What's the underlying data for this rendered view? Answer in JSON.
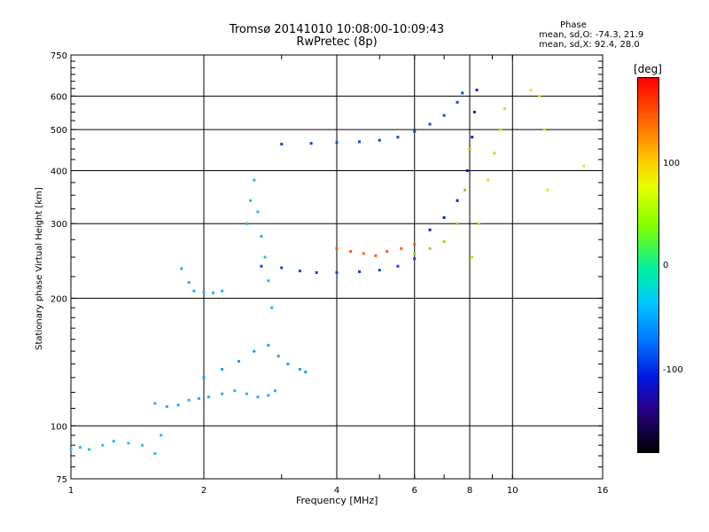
{
  "header": {
    "title": "Tromsø 20141010 10:08:00-10:09:43",
    "subtitle": "RwPretec (8p)",
    "phase_title": "Phase",
    "phase_line1": "mean, sd,O: -74.3, 21.9",
    "phase_line2": "mean, sd,X:  92.4, 28.0"
  },
  "colorbar": {
    "label": "[deg]",
    "ticks": [
      "100",
      "0",
      "-100"
    ],
    "range": [
      -180,
      180
    ]
  },
  "chart_data": {
    "type": "scatter",
    "xlabel": "Frequency [MHz]",
    "ylabel": "Stationary phase Virtual Height [km]",
    "xscale": "log",
    "yscale": "log",
    "xlim": [
      1,
      16
    ],
    "ylim": [
      75,
      750
    ],
    "x_ticks": [
      1,
      2,
      4,
      6,
      8,
      10,
      16
    ],
    "x_tick_labels": [
      "1",
      "2",
      "4",
      "6",
      "8",
      "10",
      "16"
    ],
    "y_ticks": [
      75,
      100,
      200,
      300,
      400,
      500,
      600,
      750
    ],
    "y_tick_labels": [
      "75",
      "100",
      "200",
      "300",
      "400",
      "500",
      "600",
      "750"
    ],
    "grid": true,
    "series": [
      {
        "x": [
          1.0,
          1.05,
          1.1,
          1.18,
          1.25,
          1.35,
          1.45,
          1.55,
          1.6
        ],
        "y": [
          88,
          89,
          88,
          90,
          92,
          91,
          90,
          86,
          95
        ],
        "color": "#22c0f0"
      },
      {
        "x": [
          1.55,
          1.65,
          1.75,
          1.85,
          1.95,
          2.05,
          2.2,
          2.35,
          2.5,
          2.65,
          2.8,
          2.9
        ],
        "y": [
          113,
          111,
          112,
          115,
          116,
          117,
          119,
          121,
          119,
          117,
          118,
          121
        ],
        "color": "#2aaef0"
      },
      {
        "x": [
          2.0,
          2.2,
          2.4,
          2.6,
          2.8,
          2.95,
          3.1,
          3.3,
          3.4
        ],
        "y": [
          130,
          136,
          142,
          150,
          155,
          146,
          140,
          136,
          134
        ],
        "color": "#1aa0e8"
      },
      {
        "x": [
          1.78,
          1.85,
          1.9,
          2.0,
          2.1,
          2.2
        ],
        "y": [
          235,
          218,
          208,
          206,
          206,
          208
        ],
        "color": "#20b0f0"
      },
      {
        "x": [
          2.5,
          2.55,
          2.6,
          2.65,
          2.7,
          2.75,
          2.8,
          2.85
        ],
        "y": [
          300,
          340,
          380,
          320,
          280,
          250,
          220,
          190
        ],
        "color": "#20b8f0"
      },
      {
        "x": [
          2.7,
          3.0,
          3.3,
          3.6,
          4.0,
          4.5,
          5.0,
          5.5,
          6.0
        ],
        "y": [
          238,
          236,
          232,
          230,
          230,
          231,
          233,
          238,
          248
        ],
        "color": "#1040e8"
      },
      {
        "x": [
          3.0,
          3.5,
          4.0,
          4.5,
          5.0,
          5.5,
          6.0,
          6.5,
          7.0,
          7.5,
          7.7
        ],
        "y": [
          462,
          464,
          466,
          468,
          472,
          480,
          495,
          515,
          540,
          580,
          610
        ],
        "color": "#1048e0"
      },
      {
        "x": [
          4.0,
          4.3,
          4.6,
          4.9,
          5.2,
          5.6,
          6.0
        ],
        "y": [
          262,
          258,
          255,
          252,
          258,
          262,
          268
        ],
        "color": "#ff5a00"
      },
      {
        "x": [
          6.0,
          6.5,
          7.0,
          7.5,
          7.8,
          8.0
        ],
        "y": [
          255,
          262,
          272,
          300,
          360,
          450
        ],
        "color": "#8ce000"
      },
      {
        "x": [
          6.5,
          7.0,
          7.5,
          7.9,
          8.1,
          8.2,
          8.3
        ],
        "y": [
          290,
          310,
          340,
          400,
          480,
          550,
          620
        ],
        "color": "#0020d0"
      },
      {
        "x": [
          8.1,
          8.4,
          8.8,
          9.1,
          9.4,
          9.6
        ],
        "y": [
          250,
          300,
          380,
          440,
          500,
          560
        ],
        "color": "#b0f000"
      },
      {
        "x": [
          11.0,
          11.5,
          11.8,
          12.0,
          14.5
        ],
        "y": [
          620,
          600,
          500,
          360,
          410
        ],
        "color": "#f0e020"
      }
    ]
  }
}
